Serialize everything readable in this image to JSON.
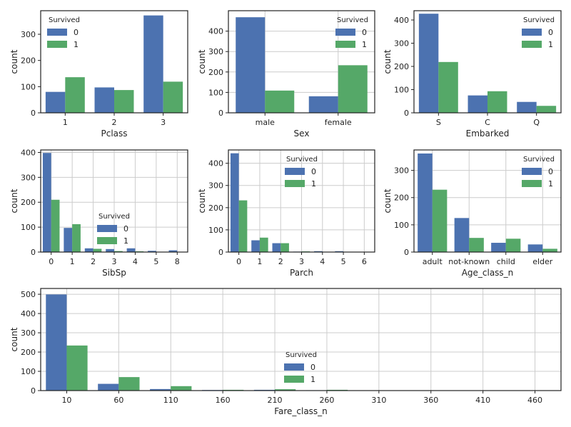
{
  "figure": {
    "legend_title": "Survived"
  },
  "chart_data": [
    {
      "type": "bar",
      "xlabel": "Pclass",
      "ylabel": "count",
      "categories": [
        "1",
        "2",
        "3"
      ],
      "ylim": [
        0,
        390
      ],
      "yticks": [
        0,
        100,
        200,
        300
      ],
      "grid": false,
      "legend_title": "Survived",
      "legend_position": "top-left",
      "series": [
        {
          "name": "0",
          "values": [
            80,
            97,
            372
          ]
        },
        {
          "name": "1",
          "values": [
            136,
            87,
            119
          ]
        }
      ]
    },
    {
      "type": "bar",
      "xlabel": "Sex",
      "ylabel": "count",
      "categories": [
        "male",
        "female"
      ],
      "ylim": [
        0,
        500
      ],
      "yticks": [
        0,
        100,
        200,
        300,
        400
      ],
      "grid": true,
      "legend_title": "Survived",
      "legend_position": "top-right",
      "series": [
        {
          "name": "0",
          "values": [
            468,
            81
          ]
        },
        {
          "name": "1",
          "values": [
            109,
            233
          ]
        }
      ]
    },
    {
      "type": "bar",
      "xlabel": "Embarked",
      "ylabel": "count",
      "categories": [
        "S",
        "C",
        "Q"
      ],
      "ylim": [
        0,
        440
      ],
      "yticks": [
        0,
        100,
        200,
        300,
        400
      ],
      "grid": false,
      "legend_title": "Survived",
      "legend_position": "top-right",
      "series": [
        {
          "name": "0",
          "values": [
            427,
            75,
            47
          ]
        },
        {
          "name": "1",
          "values": [
            219,
            93,
            30
          ]
        }
      ]
    },
    {
      "type": "bar",
      "xlabel": "SibSp",
      "ylabel": "count",
      "categories": [
        "0",
        "1",
        "2",
        "3",
        "4",
        "5",
        "8"
      ],
      "ylim": [
        0,
        410
      ],
      "yticks": [
        0,
        100,
        200,
        300,
        400
      ],
      "grid": true,
      "legend_title": "Survived",
      "legend_position": "center",
      "series": [
        {
          "name": "0",
          "values": [
            398,
            97,
            15,
            12,
            15,
            5,
            7
          ]
        },
        {
          "name": "1",
          "values": [
            210,
            112,
            13,
            4,
            3,
            0,
            0
          ]
        }
      ]
    },
    {
      "type": "bar",
      "xlabel": "Parch",
      "ylabel": "count",
      "categories": [
        "0",
        "1",
        "2",
        "3",
        "4",
        "5",
        "6"
      ],
      "ylim": [
        0,
        460
      ],
      "yticks": [
        0,
        100,
        200,
        300,
        400
      ],
      "grid": true,
      "legend_title": "Survived",
      "legend_position": "top-center",
      "series": [
        {
          "name": "0",
          "values": [
            445,
            53,
            40,
            2,
            4,
            4,
            1
          ]
        },
        {
          "name": "1",
          "values": [
            233,
            65,
            40,
            3,
            0,
            1,
            0
          ]
        }
      ]
    },
    {
      "type": "bar",
      "xlabel": "Age_class_n",
      "ylabel": "count",
      "categories": [
        "adult",
        "not-known",
        "child",
        "elder"
      ],
      "ylim": [
        0,
        375
      ],
      "yticks": [
        0,
        100,
        200,
        300
      ],
      "grid": true,
      "legend_title": "Survived",
      "legend_position": "top-right",
      "series": [
        {
          "name": "0",
          "values": [
            362,
            125,
            34,
            28
          ]
        },
        {
          "name": "1",
          "values": [
            229,
            52,
            49,
            12
          ]
        }
      ]
    },
    {
      "type": "bar",
      "xlabel": "Fare_class_n",
      "ylabel": "count",
      "categories": [
        "10",
        "60",
        "110",
        "160",
        "210",
        "260",
        "310",
        "360",
        "410",
        "460"
      ],
      "ylim": [
        0,
        530
      ],
      "yticks": [
        0,
        100,
        200,
        300,
        400,
        500
      ],
      "grid": true,
      "legend_title": "Survived",
      "legend_position": "center",
      "series": [
        {
          "name": "0",
          "values": [
            499,
            35,
            8,
            3,
            4,
            2,
            0,
            0,
            0,
            0
          ]
        },
        {
          "name": "1",
          "values": [
            234,
            70,
            23,
            4,
            7,
            4,
            1,
            1,
            1,
            1
          ]
        }
      ]
    }
  ],
  "colors": {
    "series_0": "#4c72b0",
    "series_1": "#55a868",
    "grid": "#cccccc",
    "axis": "#222222"
  }
}
